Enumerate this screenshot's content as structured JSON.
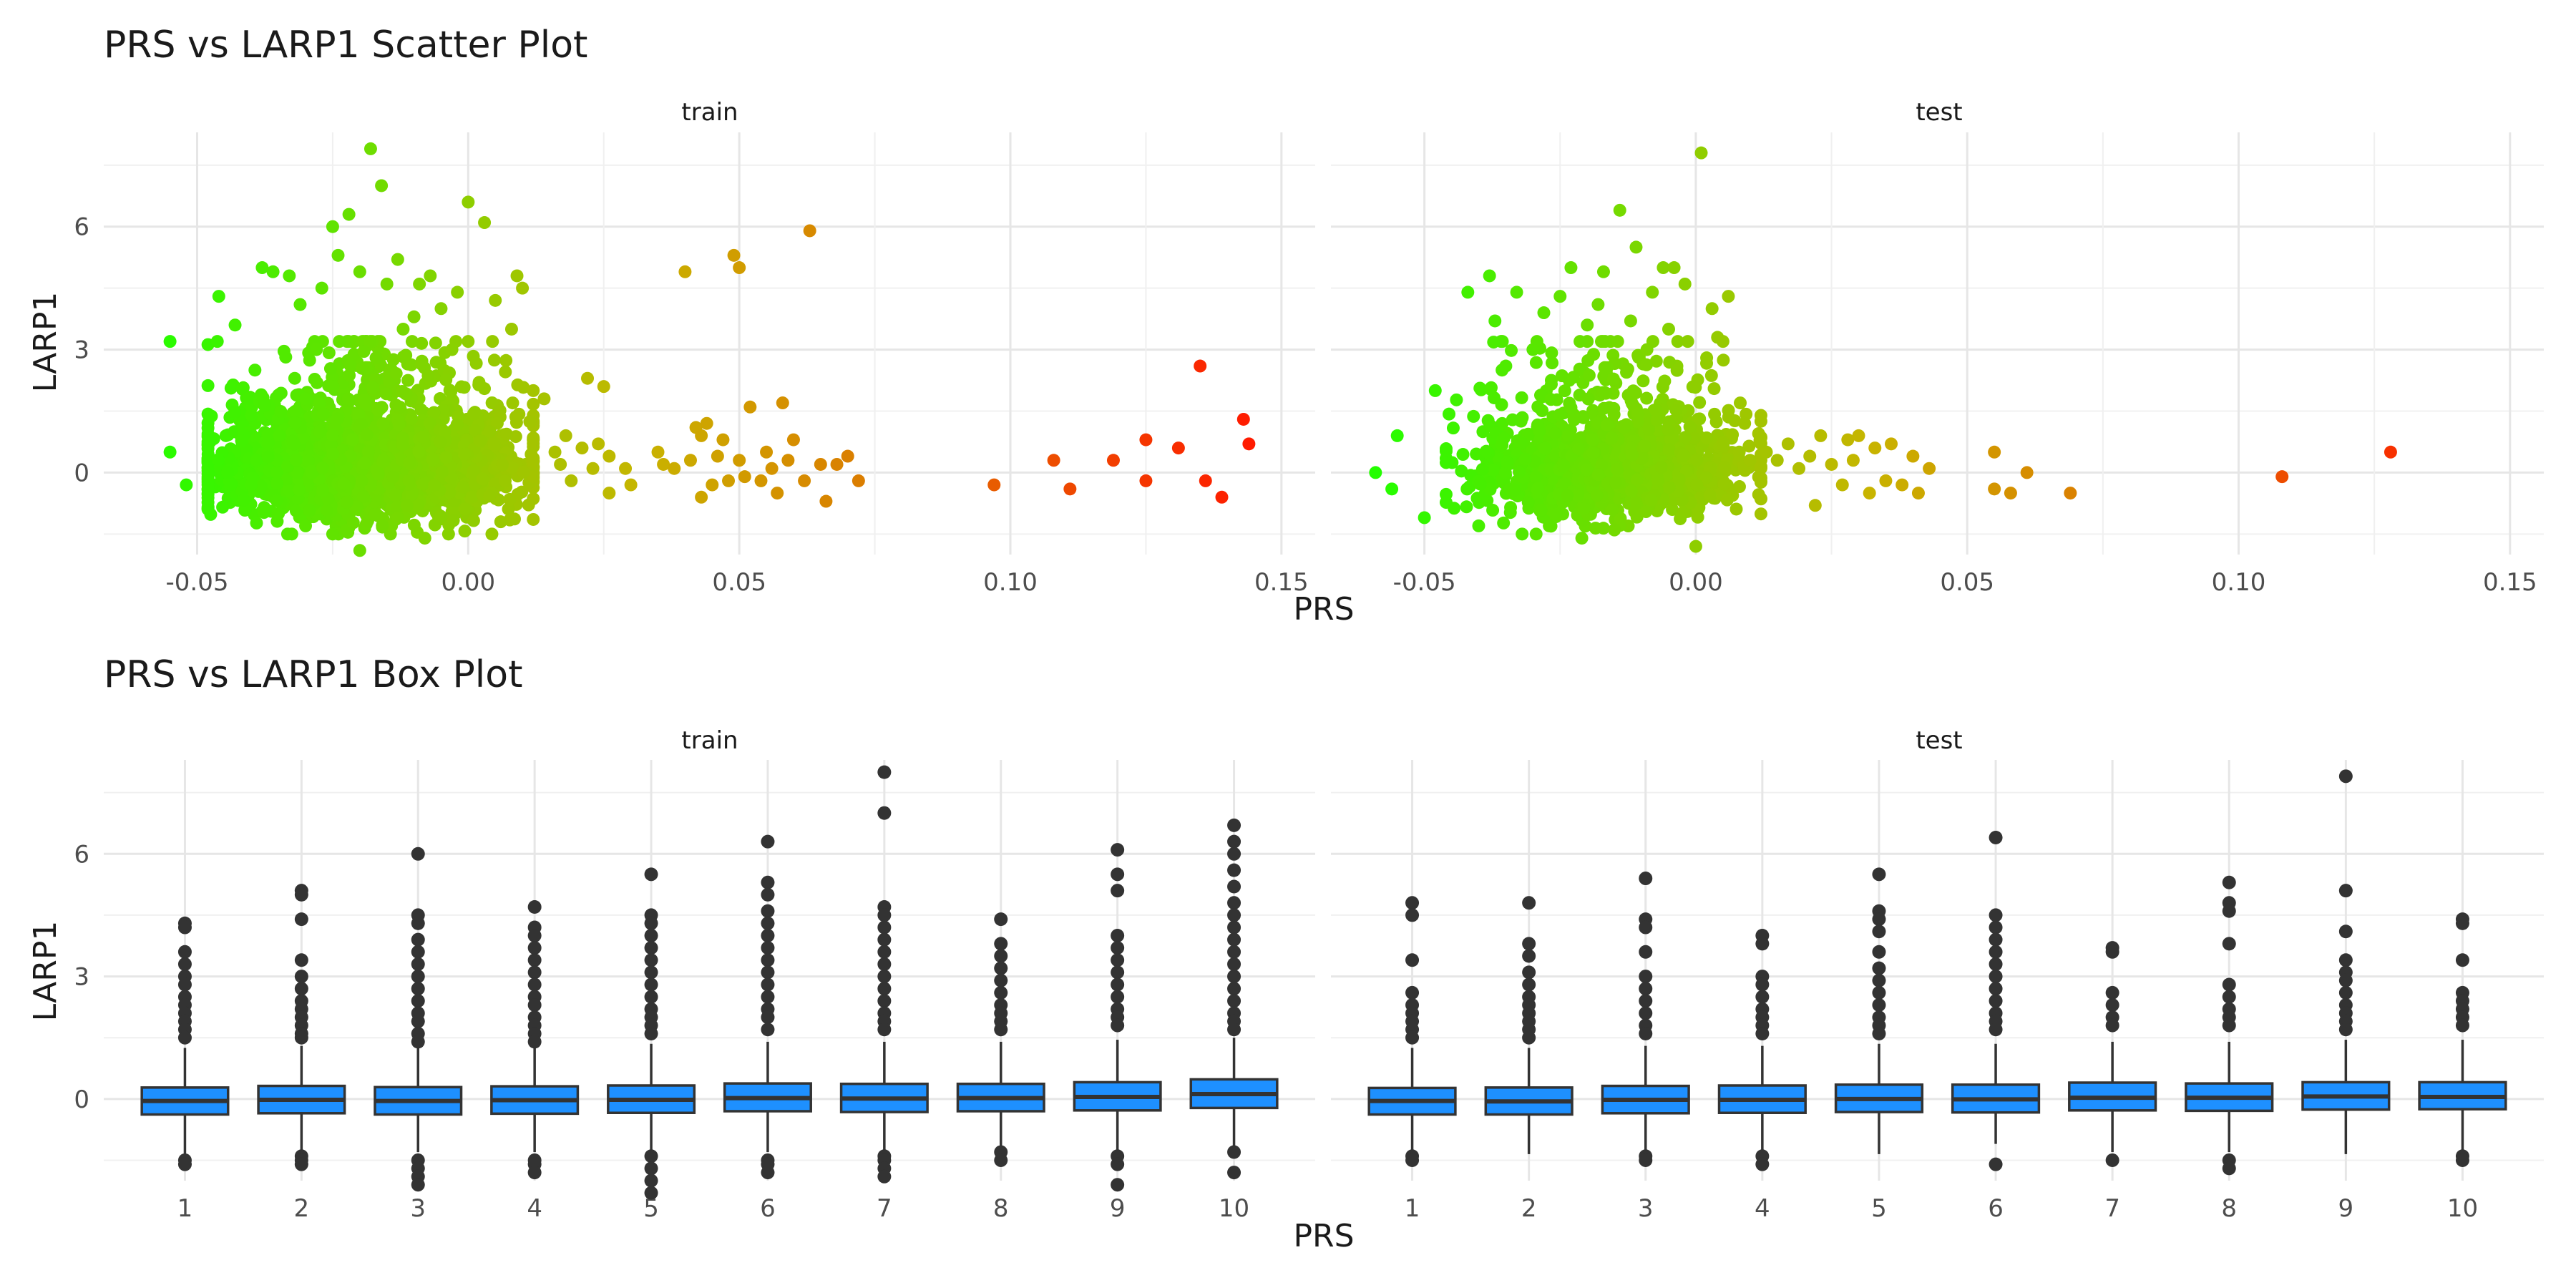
{
  "chart_data": [
    {
      "type": "scatter",
      "title": "PRS vs LARP1 Scatter Plot",
      "xlabel": "PRS",
      "ylabel": "LARP1",
      "facets": [
        "train",
        "test"
      ],
      "xlim": [
        -0.063,
        0.152
      ],
      "ylim": [
        -2.0,
        8.3
      ],
      "x_ticks": [
        -0.05,
        0.0,
        0.05,
        0.1,
        0.15
      ],
      "x_tick_labels": [
        "-0.05",
        "0.00",
        "0.05",
        "0.10",
        "0.15"
      ],
      "y_ticks": [
        0,
        3,
        6
      ],
      "y_tick_labels": [
        "0",
        "3",
        "6"
      ],
      "grid": true,
      "legend": "none",
      "color_scale": {
        "low": "#22ff00",
        "mid": "#c8b400",
        "high": "#ff1a00",
        "range": [
          -0.06,
          0.145
        ]
      },
      "series": [
        {
          "facet": "train",
          "x": [
            -0.055,
            -0.055,
            -0.052,
            -0.046,
            -0.043,
            -0.04,
            -0.038,
            -0.036,
            -0.035,
            -0.033,
            -0.032,
            -0.031,
            -0.03,
            -0.03,
            -0.028,
            -0.027,
            -0.025,
            -0.025,
            -0.024,
            -0.022,
            -0.02,
            -0.02,
            -0.018,
            -0.017,
            -0.016,
            -0.015,
            -0.013,
            -0.013,
            -0.012,
            -0.01,
            -0.009,
            -0.008,
            -0.007,
            -0.005,
            -0.003,
            -0.002,
            0.0,
            0.002,
            0.003,
            0.004,
            0.005,
            0.006,
            0.008,
            0.009,
            0.01,
            0.012,
            0.014,
            0.016,
            0.017,
            0.018,
            0.019,
            0.021,
            0.022,
            0.023,
            0.024,
            0.025,
            0.026,
            0.026,
            0.029,
            0.03,
            0.035,
            0.036,
            0.038,
            0.04,
            0.041,
            0.042,
            0.043,
            0.043,
            0.044,
            0.045,
            0.046,
            0.047,
            0.048,
            0.049,
            0.05,
            0.05,
            0.051,
            0.052,
            0.054,
            0.055,
            0.056,
            0.057,
            0.058,
            0.059,
            0.06,
            0.062,
            0.063,
            0.065,
            0.066,
            0.068,
            0.07,
            0.072,
            0.097,
            0.108,
            0.111,
            0.119,
            0.125,
            0.125,
            0.131,
            0.135,
            0.136,
            0.139,
            0.143,
            0.144
          ],
          "y": [
            3.2,
            0.5,
            -0.3,
            4.3,
            3.6,
            1.4,
            5.0,
            4.9,
            -1.0,
            4.8,
            2.3,
            4.1,
            -1.3,
            1.8,
            3.0,
            4.5,
            6.0,
            -1.5,
            5.3,
            6.3,
            -1.9,
            4.9,
            7.9,
            2.8,
            7.0,
            4.6,
            5.2,
            -1.1,
            3.5,
            3.8,
            4.6,
            -1.6,
            4.8,
            4.0,
            3.0,
            4.4,
            6.6,
            2.2,
            6.1,
            1.0,
            4.2,
            -1.2,
            3.5,
            4.8,
            4.5,
            2.0,
            1.8,
            0.5,
            0.2,
            0.9,
            -0.2,
            0.6,
            2.3,
            0.1,
            0.7,
            2.1,
            -0.5,
            0.4,
            0.1,
            -0.3,
            0.5,
            0.2,
            0.1,
            4.9,
            0.3,
            1.1,
            -0.6,
            0.9,
            1.2,
            -0.3,
            0.4,
            0.8,
            -0.2,
            5.3,
            5.0,
            0.3,
            -0.1,
            1.6,
            -0.2,
            0.5,
            0.1,
            -0.5,
            1.7,
            0.3,
            0.8,
            -0.2,
            5.9,
            0.2,
            -0.7,
            0.2,
            0.4,
            -0.2,
            -0.3,
            0.3,
            -0.4,
            0.3,
            -0.2,
            0.8,
            0.6,
            2.6,
            -0.2,
            -0.6,
            1.3,
            0.7
          ],
          "note": "dense core: roughly 3000 points with PRS in [-0.048, 0.012] and LARP1 in [-1.5, 2.5]"
        },
        {
          "facet": "test",
          "x": [
            -0.059,
            -0.056,
            -0.055,
            -0.05,
            -0.048,
            -0.042,
            -0.04,
            -0.038,
            -0.037,
            -0.035,
            -0.033,
            -0.032,
            -0.03,
            -0.028,
            -0.027,
            -0.025,
            -0.023,
            -0.021,
            -0.02,
            -0.018,
            -0.017,
            -0.015,
            -0.014,
            -0.012,
            -0.011,
            -0.009,
            -0.008,
            -0.006,
            -0.005,
            -0.004,
            -0.002,
            0.0,
            0.001,
            0.002,
            0.003,
            0.004,
            0.005,
            0.006,
            0.008,
            0.009,
            0.01,
            0.013,
            0.015,
            0.017,
            0.019,
            0.021,
            0.022,
            0.023,
            0.025,
            0.027,
            0.028,
            0.029,
            0.03,
            0.032,
            0.033,
            0.035,
            0.036,
            0.038,
            0.04,
            0.041,
            0.043,
            0.055,
            0.055,
            0.058,
            0.061,
            0.069,
            0.108,
            0.128
          ],
          "y": [
            0.0,
            -0.4,
            0.9,
            -1.1,
            2.0,
            4.4,
            -1.3,
            4.8,
            3.7,
            2.6,
            4.4,
            -1.5,
            3.0,
            3.9,
            -1.3,
            4.3,
            5.0,
            -1.6,
            3.6,
            4.1,
            4.9,
            -1.4,
            6.4,
            3.7,
            5.5,
            3.0,
            4.4,
            5.0,
            3.5,
            5.0,
            4.6,
            -1.8,
            7.8,
            2.8,
            4.0,
            3.3,
            3.2,
            4.3,
            0.5,
            1.2,
            0.3,
            0.5,
            0.3,
            0.7,
            0.1,
            0.4,
            -0.8,
            0.9,
            0.2,
            -0.3,
            0.8,
            0.3,
            0.9,
            -0.5,
            0.6,
            -0.2,
            0.7,
            -0.3,
            0.4,
            -0.5,
            0.1,
            0.5,
            -0.4,
            -0.5,
            0.0,
            -0.5,
            -0.1,
            0.5
          ],
          "note": "dense core: roughly 1400 points with PRS in [-0.045, 0.012] and LARP1 in [-1.5, 2.5]"
        }
      ]
    },
    {
      "type": "box",
      "title": "PRS vs LARP1 Box Plot",
      "xlabel": "PRS",
      "ylabel": "LARP1",
      "facets": [
        "train",
        "test"
      ],
      "categories": [
        "1",
        "2",
        "3",
        "4",
        "5",
        "6",
        "7",
        "8",
        "9",
        "10"
      ],
      "ylim": [
        -2.0,
        8.3
      ],
      "y_ticks": [
        0,
        3,
        6
      ],
      "y_tick_labels": [
        "0",
        "3",
        "6"
      ],
      "grid": true,
      "legend": "none",
      "box_color": "#1e90ff",
      "series": [
        {
          "facet": "train",
          "boxes": [
            {
              "category": "1",
              "q1": -0.38,
              "median": -0.05,
              "q3": 0.28,
              "whisker_low": -1.35,
              "whisker_high": 1.25,
              "outliers": [
                4.3,
                4.2,
                3.6,
                3.3,
                3.0,
                2.8,
                2.5,
                2.3,
                2.1,
                1.9,
                1.7,
                1.5,
                -1.5,
                -1.6
              ]
            },
            {
              "category": "2",
              "q1": -0.35,
              "median": -0.02,
              "q3": 0.32,
              "whisker_low": -1.3,
              "whisker_high": 1.3,
              "outliers": [
                5.1,
                5.0,
                4.4,
                3.4,
                3.0,
                2.7,
                2.4,
                2.2,
                2.0,
                1.8,
                1.6,
                1.5,
                -1.4,
                -1.5,
                -1.6
              ]
            },
            {
              "category": "3",
              "q1": -0.38,
              "median": -0.05,
              "q3": 0.29,
              "whisker_low": -1.3,
              "whisker_high": 1.25,
              "outliers": [
                6.0,
                4.5,
                4.3,
                3.9,
                3.6,
                3.3,
                3.0,
                2.7,
                2.4,
                2.1,
                1.9,
                1.6,
                1.4,
                -1.5,
                -1.7,
                -1.9,
                -2.1
              ]
            },
            {
              "category": "4",
              "q1": -0.36,
              "median": -0.03,
              "q3": 0.31,
              "whisker_low": -1.3,
              "whisker_high": 1.3,
              "outliers": [
                4.7,
                4.2,
                4.0,
                3.7,
                3.4,
                3.1,
                2.8,
                2.5,
                2.3,
                2.0,
                1.8,
                1.6,
                1.4,
                -1.5,
                -1.6,
                -1.8
              ]
            },
            {
              "category": "5",
              "q1": -0.34,
              "median": -0.02,
              "q3": 0.33,
              "whisker_low": -1.3,
              "whisker_high": 1.35,
              "outliers": [
                5.5,
                4.5,
                4.3,
                4.0,
                3.7,
                3.4,
                3.1,
                2.8,
                2.5,
                2.2,
                2.0,
                1.8,
                1.6,
                -1.4,
                -1.7,
                -2.0,
                -2.3
              ]
            },
            {
              "category": "6",
              "q1": -0.3,
              "median": 0.02,
              "q3": 0.38,
              "whisker_low": -1.3,
              "whisker_high": 1.4,
              "outliers": [
                6.3,
                5.3,
                5.0,
                4.6,
                4.3,
                4.0,
                3.7,
                3.4,
                3.1,
                2.8,
                2.5,
                2.2,
                2.0,
                1.7,
                -1.5,
                -1.6,
                -1.8
              ]
            },
            {
              "category": "7",
              "q1": -0.32,
              "median": 0.01,
              "q3": 0.37,
              "whisker_low": -1.3,
              "whisker_high": 1.4,
              "outliers": [
                8.0,
                7.0,
                4.7,
                4.5,
                4.2,
                3.9,
                3.6,
                3.3,
                3.0,
                2.7,
                2.4,
                2.1,
                1.9,
                1.7,
                -1.4,
                -1.5,
                -1.7,
                -1.9
              ]
            },
            {
              "category": "8",
              "q1": -0.3,
              "median": 0.02,
              "q3": 0.37,
              "whisker_low": -1.3,
              "whisker_high": 1.4,
              "outliers": [
                4.4,
                3.8,
                3.5,
                3.2,
                2.9,
                2.6,
                2.3,
                2.1,
                1.9,
                1.7,
                -1.3,
                -1.5
              ]
            },
            {
              "category": "9",
              "q1": -0.28,
              "median": 0.05,
              "q3": 0.41,
              "whisker_low": -1.3,
              "whisker_high": 1.45,
              "outliers": [
                6.1,
                5.5,
                5.1,
                4.0,
                3.7,
                3.4,
                3.1,
                2.8,
                2.5,
                2.2,
                2.0,
                1.8,
                -1.4,
                -1.6,
                -2.1
              ]
            },
            {
              "category": "10",
              "q1": -0.22,
              "median": 0.12,
              "q3": 0.48,
              "whisker_low": -1.25,
              "whisker_high": 1.5,
              "outliers": [
                6.7,
                6.3,
                6.0,
                5.6,
                5.2,
                4.8,
                4.5,
                4.2,
                3.9,
                3.6,
                3.3,
                3.0,
                2.7,
                2.4,
                2.1,
                1.9,
                1.7,
                -1.3,
                -1.8
              ]
            }
          ]
        },
        {
          "facet": "test",
          "boxes": [
            {
              "category": "1",
              "q1": -0.38,
              "median": -0.05,
              "q3": 0.27,
              "whisker_low": -1.3,
              "whisker_high": 1.25,
              "outliers": [
                4.8,
                4.5,
                3.4,
                2.6,
                2.3,
                2.1,
                1.9,
                1.7,
                1.5,
                -1.4,
                -1.5
              ]
            },
            {
              "category": "2",
              "q1": -0.38,
              "median": -0.06,
              "q3": 0.28,
              "whisker_low": -1.35,
              "whisker_high": 1.25,
              "outliers": [
                4.8,
                3.8,
                3.5,
                3.1,
                2.8,
                2.5,
                2.3,
                2.1,
                1.9,
                1.7,
                1.5
              ]
            },
            {
              "category": "3",
              "q1": -0.35,
              "median": -0.02,
              "q3": 0.32,
              "whisker_low": -1.3,
              "whisker_high": 1.3,
              "outliers": [
                5.4,
                4.4,
                4.2,
                3.6,
                3.0,
                2.7,
                2.4,
                2.1,
                1.8,
                1.6,
                -1.4,
                -1.5
              ]
            },
            {
              "category": "4",
              "q1": -0.34,
              "median": -0.02,
              "q3": 0.33,
              "whisker_low": -1.3,
              "whisker_high": 1.3,
              "outliers": [
                4.0,
                3.8,
                3.0,
                2.8,
                2.5,
                2.2,
                2.0,
                1.8,
                1.6,
                -1.4,
                -1.6
              ]
            },
            {
              "category": "5",
              "q1": -0.32,
              "median": 0.0,
              "q3": 0.35,
              "whisker_low": -1.35,
              "whisker_high": 1.35,
              "outliers": [
                5.5,
                4.6,
                4.4,
                4.1,
                3.6,
                3.2,
                2.9,
                2.6,
                2.3,
                2.0,
                1.8,
                1.6
              ]
            },
            {
              "category": "6",
              "q1": -0.33,
              "median": -0.01,
              "q3": 0.35,
              "whisker_low": -1.1,
              "whisker_high": 1.35,
              "outliers": [
                6.4,
                4.5,
                4.2,
                3.9,
                3.6,
                3.3,
                3.0,
                2.7,
                2.4,
                2.1,
                1.9,
                1.7,
                -1.6
              ]
            },
            {
              "category": "7",
              "q1": -0.28,
              "median": 0.03,
              "q3": 0.4,
              "whisker_low": -1.3,
              "whisker_high": 1.4,
              "outliers": [
                3.7,
                3.6,
                2.6,
                2.3,
                2.0,
                1.8,
                -1.5
              ]
            },
            {
              "category": "8",
              "q1": -0.29,
              "median": 0.03,
              "q3": 0.38,
              "whisker_low": -1.3,
              "whisker_high": 1.4,
              "outliers": [
                5.3,
                4.8,
                4.6,
                3.8,
                2.8,
                2.5,
                2.2,
                2.0,
                1.8,
                -1.5,
                -1.7
              ]
            },
            {
              "category": "9",
              "q1": -0.26,
              "median": 0.06,
              "q3": 0.41,
              "whisker_low": -1.35,
              "whisker_high": 1.45,
              "outliers": [
                7.9,
                5.1,
                4.1,
                3.4,
                3.1,
                2.9,
                2.6,
                2.3,
                2.1,
                1.9,
                1.7
              ]
            },
            {
              "category": "10",
              "q1": -0.25,
              "median": 0.05,
              "q3": 0.41,
              "whisker_low": -1.3,
              "whisker_high": 1.45,
              "outliers": [
                4.4,
                4.3,
                3.4,
                2.6,
                2.4,
                2.2,
                2.0,
                1.8,
                -1.4,
                -1.5
              ]
            }
          ]
        }
      ]
    }
  ]
}
